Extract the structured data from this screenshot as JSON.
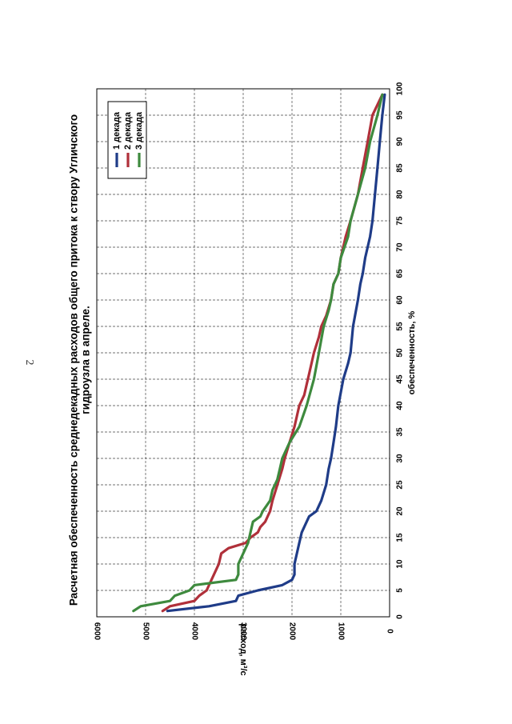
{
  "page": {
    "number": "2"
  },
  "chart_data": {
    "type": "line",
    "title_lines": [
      "Расчетная обеспеченность среднедекадных расходов общего притока к створу Угличского",
      "гидроузла в апреле."
    ],
    "xlabel": "обеспеченность, %",
    "ylabel": "расход, м³/с",
    "xlim": [
      0,
      100
    ],
    "ylim": [
      0,
      6000
    ],
    "x_ticks": [
      0,
      5,
      10,
      15,
      20,
      25,
      30,
      35,
      40,
      45,
      50,
      55,
      60,
      65,
      70,
      75,
      80,
      85,
      90,
      95,
      100
    ],
    "y_ticks": [
      0,
      1000,
      2000,
      3000,
      4000,
      5000,
      6000
    ],
    "grid": true,
    "legend_position": "top-right",
    "series": [
      {
        "name": "1 декада",
        "color": "#1f3c88",
        "x": [
          1.1,
          2,
          3,
          4,
          5,
          6,
          7,
          8,
          10,
          12,
          14,
          16,
          18,
          19,
          20,
          22,
          25,
          28,
          30,
          33,
          36,
          40,
          45,
          48,
          50,
          55,
          60,
          63,
          65,
          68,
          72,
          75,
          80,
          85,
          90,
          95,
          98.9
        ],
        "y": [
          4550,
          3700,
          3150,
          3100,
          2700,
          2200,
          2000,
          1950,
          1950,
          1900,
          1850,
          1800,
          1700,
          1650,
          1500,
          1400,
          1300,
          1250,
          1200,
          1150,
          1100,
          1050,
          950,
          850,
          800,
          750,
          650,
          600,
          550,
          500,
          400,
          350,
          300,
          250,
          200,
          150,
          100
        ]
      },
      {
        "name": "2 декада",
        "color": "#b0303a",
        "x": [
          1.1,
          2,
          3,
          4,
          5,
          6,
          8,
          10,
          12,
          13,
          14,
          15,
          16,
          17,
          18,
          19,
          20,
          22,
          25,
          28,
          30,
          33,
          36,
          38,
          40,
          42,
          44,
          46,
          48,
          50,
          53,
          55,
          57,
          60,
          63,
          65,
          68,
          72,
          75,
          80,
          85,
          90,
          95,
          98.9
        ],
        "y": [
          4650,
          4500,
          4000,
          3900,
          3750,
          3700,
          3600,
          3500,
          3450,
          3300,
          2950,
          2850,
          2700,
          2650,
          2550,
          2500,
          2450,
          2400,
          2300,
          2200,
          2150,
          2050,
          1950,
          1900,
          1850,
          1750,
          1700,
          1650,
          1600,
          1550,
          1450,
          1400,
          1300,
          1200,
          1150,
          1050,
          1000,
          900,
          800,
          650,
          550,
          450,
          350,
          150
        ]
      },
      {
        "name": "3 декада",
        "color": "#3e8a3e",
        "x": [
          1.1,
          2,
          3,
          4,
          5,
          6,
          7,
          8,
          10,
          12,
          14,
          16,
          18,
          19,
          20,
          22,
          24,
          26,
          28,
          30,
          33,
          36,
          40,
          45,
          50,
          55,
          58,
          60,
          63,
          65,
          68,
          72,
          75,
          80,
          85,
          90,
          95,
          98.9
        ],
        "y": [
          5250,
          5100,
          4500,
          4400,
          4100,
          4000,
          3150,
          3100,
          3100,
          3000,
          2900,
          2850,
          2800,
          2650,
          2600,
          2450,
          2400,
          2300,
          2250,
          2200,
          2050,
          1850,
          1700,
          1550,
          1450,
          1350,
          1250,
          1200,
          1150,
          1050,
          1000,
          850,
          800,
          650,
          500,
          400,
          250,
          150
        ]
      }
    ]
  }
}
